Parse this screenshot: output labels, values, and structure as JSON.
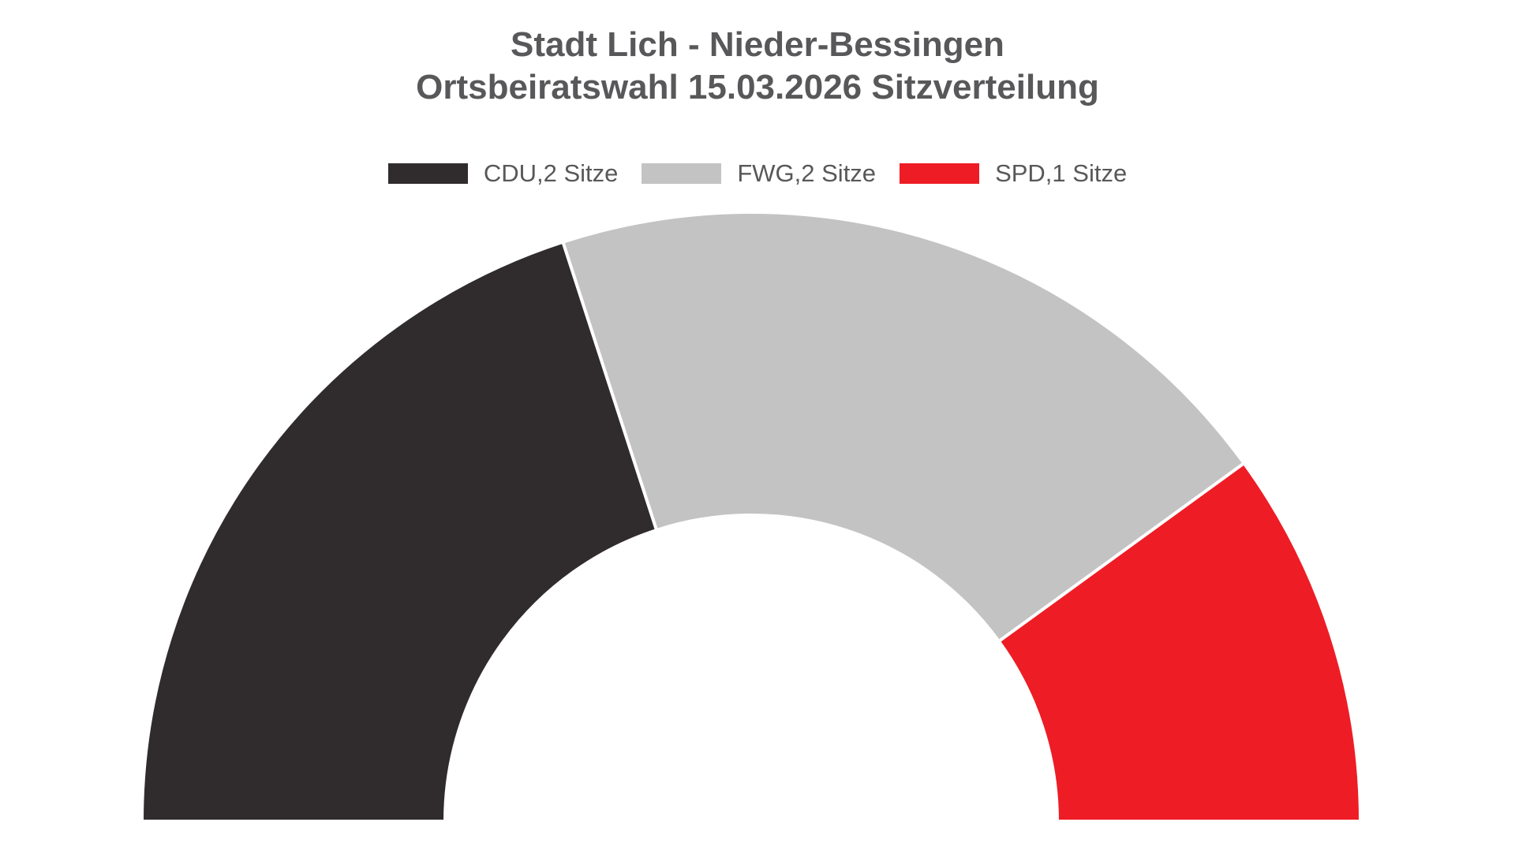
{
  "chart_data": {
    "type": "pie",
    "variant": "half-donut",
    "title": "Stadt Lich - Nieder-Bessingen",
    "subtitle": "Ortsbeiratswahl 15.03.2026 Sitzverteilung",
    "total_seats": 5,
    "categories": [
      "CDU",
      "FWG",
      "SPD"
    ],
    "values": [
      2,
      2,
      1
    ],
    "series": [
      {
        "name": "CDU",
        "seats": 2,
        "legend_label": "CDU,2 Sitze",
        "color": "#302c2d"
      },
      {
        "name": "FWG",
        "seats": 2,
        "legend_label": "FWG,2 Sitze",
        "color": "#c3c3c3"
      },
      {
        "name": "SPD",
        "seats": 1,
        "legend_label": "SPD,1 Sitze",
        "color": "#ee1c25"
      }
    ],
    "start_angle_deg": 180,
    "end_angle_deg": 360,
    "legend_position": "top-center",
    "colors": {
      "background": "#ffffff",
      "title_text": "#58585a",
      "legend_text": "#58585a",
      "wedge_separator": "#ffffff"
    }
  }
}
